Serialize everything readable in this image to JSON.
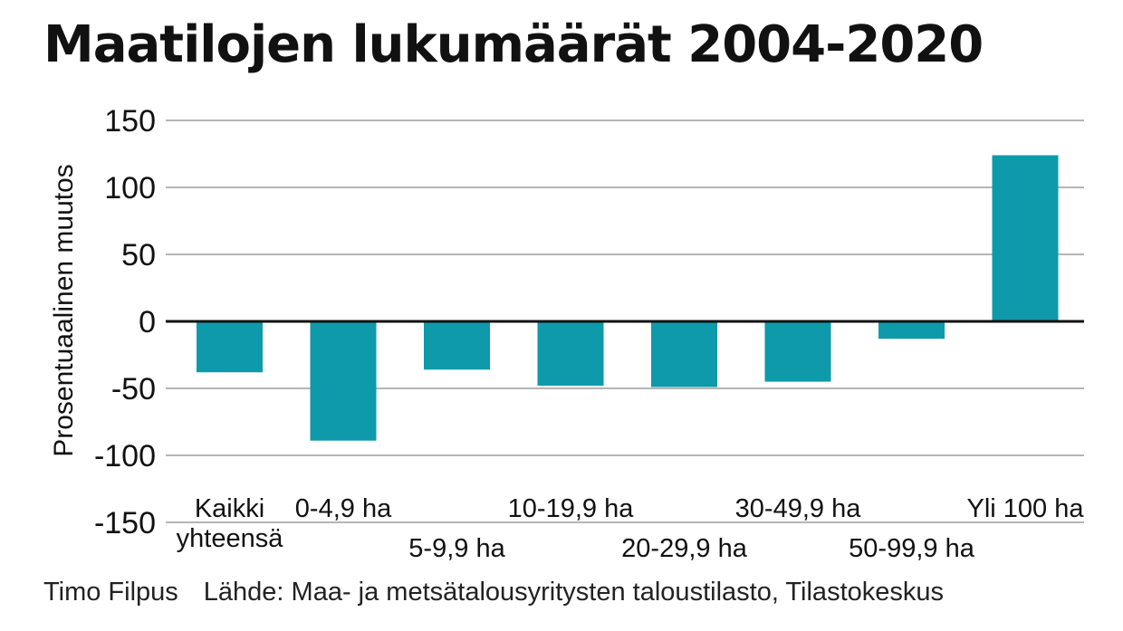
{
  "title": "Maatilojen lukumäärät 2004-2020",
  "footer": {
    "author": "Timo Filpus",
    "source": "Lähde: Maa- ja metsätalousyritysten taloustilasto, Tilastokeskus"
  },
  "colors": {
    "bar": "#0e9aaa",
    "grid": "#b5b5b5",
    "zero_line": "#111111"
  },
  "chart_data": {
    "type": "bar",
    "title": "Maatilojen lukumäärät 2004-2020",
    "ylabel": "Prosentuaalinen muutos",
    "xlabel": "",
    "ylim": [
      -150,
      150
    ],
    "yticks": [
      150,
      100,
      50,
      0,
      -50,
      -100,
      -150
    ],
    "grid": true,
    "categories": [
      {
        "label": [
          "Kaikki",
          "yhteensä"
        ],
        "row": "top"
      },
      {
        "label": [
          "0-4,9 ha"
        ],
        "row": "top"
      },
      {
        "label": [
          "5-9,9 ha"
        ],
        "row": "bottom"
      },
      {
        "label": [
          "10-19,9 ha"
        ],
        "row": "top"
      },
      {
        "label": [
          "20-29,9 ha"
        ],
        "row": "bottom"
      },
      {
        "label": [
          "30-49,9 ha"
        ],
        "row": "top"
      },
      {
        "label": [
          "50-99,9 ha"
        ],
        "row": "bottom"
      },
      {
        "label": [
          "Yli 100 ha"
        ],
        "row": "top"
      }
    ],
    "values": [
      -38,
      -89,
      -36,
      -48,
      -49,
      -45,
      -13,
      124
    ]
  }
}
